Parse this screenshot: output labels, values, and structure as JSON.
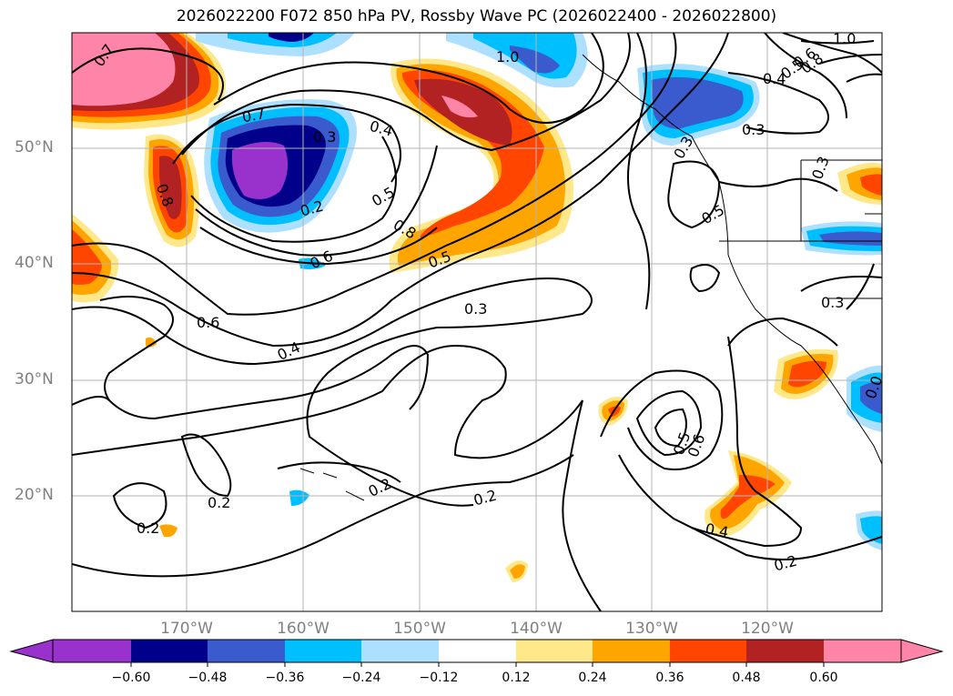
{
  "title": "2026022200 F072 850 hPa PV, Rossby Wave PC (2026022400 - 2026022800)",
  "lat_labels": [
    "50°N",
    "40°N",
    "30°N",
    "20°N"
  ],
  "lon_labels": [
    "170°W",
    "160°W",
    "150°W",
    "140°W",
    "130°W",
    "120°W"
  ],
  "contour_labels": [
    "0.7",
    "1.0",
    "1.0",
    "0.8",
    "0.5",
    "0.6",
    "0.4",
    "0.7",
    "0.3",
    "0.4",
    "0.2",
    "0.5",
    "0.8",
    "0.6",
    "0.5",
    "0.3",
    "0.3",
    "0.3",
    "0.8",
    "0.5",
    "0.3",
    "0.6",
    "0.4",
    "0.3",
    "0.2",
    "0.2",
    "0.2",
    "0.2",
    "0.5",
    "0.6",
    "0.4",
    "0.2",
    "0.0"
  ],
  "colorbar": {
    "ticks": [
      "−0.60",
      "−0.48",
      "−0.36",
      "−0.24",
      "−0.12",
      "0.12",
      "0.24",
      "0.36",
      "0.48",
      "0.60"
    ],
    "colors": [
      "#9932CC",
      "#00008B",
      "#3A5BCD",
      "#00BFFF",
      "#ADDFFF",
      "#FFFFFF",
      "#FFE88A",
      "#FFA500",
      "#FF4500",
      "#B22222",
      "#FF85A8"
    ]
  }
}
